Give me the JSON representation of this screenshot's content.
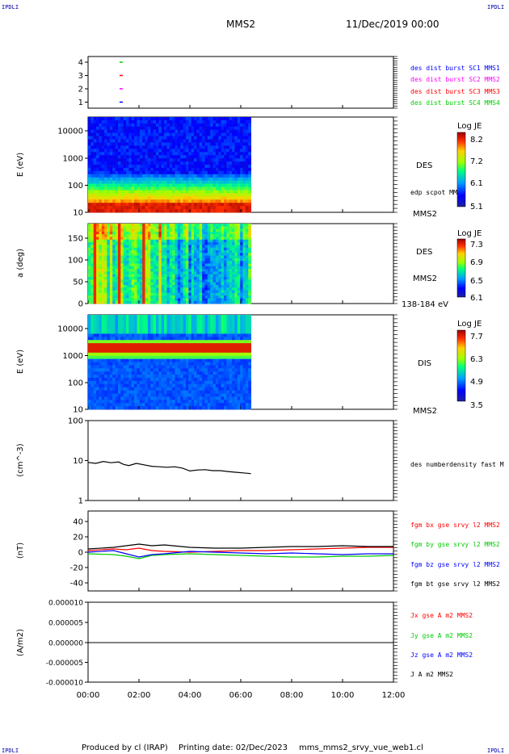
{
  "corners": {
    "tl": "IPDLI",
    "tr": "IPDLI",
    "bl": "IPDLI",
    "br": "IPDLI"
  },
  "header": {
    "spacecraft": "MMS2",
    "date": "11/Dec/2019 00:00"
  },
  "footer": {
    "produced_by": "Produced by cl (IRAP)",
    "printing_date": "Printing date: 02/Dec/2023",
    "filename": "mms_mms2_srvy_vue_web1.cl"
  },
  "colors": {
    "mms1": "#0000ff",
    "mms2": "#ff00ff",
    "mms3": "#ff0000",
    "mms4": "#00cc00",
    "black": "#000000"
  },
  "chart_data": [
    {
      "id": "panel1",
      "type": "scatter",
      "yticks": [
        "1",
        "2",
        "3",
        "4"
      ],
      "legend": [
        "des dist burst SC1 MMS1",
        "des dist burst SC2 MMS2",
        "des dist burst SC3 MMS3",
        "des dist burst SC4 MMS4"
      ],
      "series": [
        {
          "name": "des dist burst SC1 MMS1",
          "color": "#0000ff",
          "y": 1,
          "x": [
            1.3
          ]
        },
        {
          "name": "des dist burst SC2 MMS2",
          "color": "#ff00ff",
          "y": 2,
          "x": [
            1.3
          ]
        },
        {
          "name": "des dist burst SC3 MMS3",
          "color": "#ff0000",
          "y": 3,
          "x": [
            1.3
          ]
        },
        {
          "name": "des dist burst SC4 MMS4",
          "color": "#00cc00",
          "y": 4,
          "x": [
            1.3
          ]
        }
      ]
    },
    {
      "id": "panel2",
      "type": "heatmap",
      "ylabel": "E (eV)",
      "yticks": [
        "10",
        "100",
        "1000",
        "10000"
      ],
      "label": "DES",
      "sublabel": "MMS2",
      "annotation": "edp scpot MMS2",
      "colorbar": {
        "title": "Log JE",
        "ticks": [
          "8.2",
          "7.2",
          "6.1",
          "5.1"
        ]
      },
      "x_range_hours": [
        0,
        6.4
      ]
    },
    {
      "id": "panel3",
      "type": "heatmap",
      "ylabel": "a (deg)",
      "yticks": [
        "0",
        "50",
        "100",
        "150"
      ],
      "label": "DES",
      "sublabel": "MMS2",
      "energy_range": "138-184 eV",
      "colorbar": {
        "title": "Log JE",
        "ticks": [
          "7.3",
          "6.9",
          "6.5",
          "6.1"
        ]
      },
      "x_range_hours": [
        0,
        6.4
      ]
    },
    {
      "id": "panel4",
      "type": "heatmap",
      "ylabel": "E (eV)",
      "yticks": [
        "10",
        "100",
        "1000",
        "10000"
      ],
      "label": "DIS",
      "sublabel": "MMS2",
      "colorbar": {
        "title": "Log JE",
        "ticks": [
          "7.7",
          "6.3",
          "4.9",
          "3.5"
        ]
      },
      "x_range_hours": [
        0,
        6.4
      ]
    },
    {
      "id": "panel5",
      "type": "line",
      "ylabel": "(cm^-3)",
      "yticks": [
        "1",
        "10",
        "100"
      ],
      "ylim": [
        1,
        100
      ],
      "log": true,
      "series": [
        {
          "name": "des numberdensity fast M",
          "color": "#000000",
          "x": [
            0,
            0.3,
            0.6,
            0.9,
            1.2,
            1.4,
            1.6,
            1.9,
            2.2,
            2.5,
            2.8,
            3.1,
            3.4,
            3.7,
            4.0,
            4.3,
            4.6,
            4.9,
            5.2,
            5.5,
            5.8,
            6.1,
            6.4
          ],
          "y": [
            9,
            8.5,
            9.5,
            8.8,
            9.2,
            8,
            7.5,
            8.5,
            7.8,
            7.2,
            7.0,
            6.8,
            7.0,
            6.5,
            5.5,
            5.8,
            5.9,
            5.6,
            5.6,
            5.3,
            5.1,
            4.9,
            4.7
          ]
        }
      ]
    },
    {
      "id": "panel6",
      "type": "line",
      "ylabel": "(nT)",
      "yticks": [
        "-40",
        "-20",
        "0",
        "20",
        "40"
      ],
      "ylim": [
        -50,
        50
      ],
      "series": [
        {
          "name": "fgm bx gse srvy l2 MMS2",
          "color": "#ff0000",
          "x": [
            0,
            1,
            1.5,
            2,
            2.5,
            3,
            4,
            5,
            6,
            7,
            8,
            9,
            10,
            11,
            12
          ],
          "y": [
            2,
            4,
            3,
            5,
            2,
            1,
            0,
            1,
            2,
            2,
            3,
            4,
            5,
            6,
            6
          ]
        },
        {
          "name": "fgm by gse srvy l2 MMS2",
          "color": "#00cc00",
          "x": [
            0,
            1,
            1.5,
            2,
            2.5,
            3,
            4,
            5,
            6,
            7,
            8,
            9,
            10,
            11,
            12
          ],
          "y": [
            -2,
            -3,
            -5,
            -8,
            -4,
            -3,
            -2,
            -3,
            -4,
            -5,
            -6,
            -6,
            -5,
            -5,
            -4
          ]
        },
        {
          "name": "fgm bz gse srvy l2 MMS2",
          "color": "#0000ff",
          "x": [
            0,
            1,
            1.5,
            2,
            2.5,
            3,
            4,
            5,
            6,
            7,
            8,
            9,
            10,
            11,
            12
          ],
          "y": [
            0,
            2,
            -2,
            -6,
            -3,
            -2,
            1,
            0,
            -1,
            -2,
            -1,
            -2,
            -3,
            -2,
            -2
          ]
        },
        {
          "name": "fgm bt gse srvy l2 MMS2",
          "color": "#000000",
          "x": [
            0,
            1,
            1.5,
            2,
            2.5,
            3,
            4,
            5,
            6,
            7,
            8,
            9,
            10,
            11,
            12
          ],
          "y": [
            4,
            6,
            8,
            10,
            8,
            9,
            6,
            5,
            5,
            6,
            7,
            7,
            8,
            7,
            7
          ]
        }
      ]
    },
    {
      "id": "panel7",
      "type": "line",
      "ylabel": "(A/m2)",
      "yticks": [
        "0.000010",
        "0.000005",
        "0.000000",
        "-0.000005",
        "-0.000010"
      ],
      "ylim": [
        -1e-05,
        1e-05
      ],
      "legend": [
        "Jx gse A m2 MMS2",
        "Jy gse A m2 MMS2",
        "Jz gse A m2 MMS2",
        "J A m2 MMS2"
      ],
      "legend_colors": [
        "#ff0000",
        "#00cc00",
        "#0000ff",
        "#000000"
      ],
      "series": [
        {
          "name": "J A m2 MMS2",
          "color": "#000000",
          "x": [
            0,
            3,
            6,
            9,
            12
          ],
          "y": [
            0,
            0,
            0,
            0,
            0
          ]
        }
      ]
    }
  ],
  "xaxis": {
    "ticks": [
      "00:00",
      "02:00",
      "04:00",
      "06:00",
      "08:00",
      "10:00",
      "12:00"
    ],
    "range_hours": [
      0,
      12
    ]
  }
}
